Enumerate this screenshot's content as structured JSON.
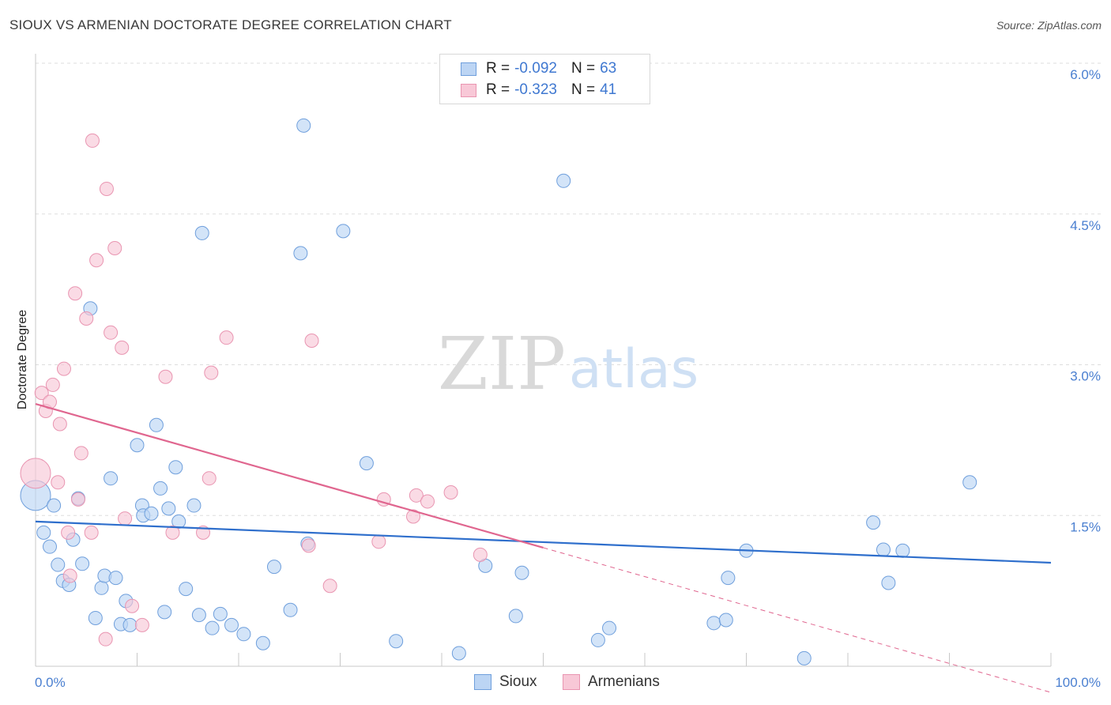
{
  "title": "SIOUX VS ARMENIAN DOCTORATE DEGREE CORRELATION CHART",
  "source": "Source: ZipAtlas.com",
  "watermark": {
    "zip": "ZIP",
    "atlas": "atlas"
  },
  "legend_top": [
    {
      "series": "Sioux",
      "r_label": "R =",
      "r_value": "-0.092",
      "n_label": "N =",
      "n_value": "63"
    },
    {
      "series": "Armenians",
      "r_label": "R =",
      "r_value": "-0.323",
      "n_label": "N =",
      "n_value": "41"
    }
  ],
  "colors": {
    "sioux_fill": "#bcd5f4",
    "sioux_stroke": "#6f9fdc",
    "sioux_line": "#2f6fcc",
    "armenian_fill": "#f8c8d7",
    "armenian_stroke": "#e995b1",
    "armenian_line": "#e0668f",
    "grid": "#dddddd",
    "axis_label": "#4a7fd0"
  },
  "chart_data": {
    "type": "scatter",
    "title": "SIOUX VS ARMENIAN DOCTORATE DEGREE CORRELATION CHART",
    "xlabel": "",
    "ylabel": "Doctorate Degree",
    "x_tick_labels": [
      "0.0%",
      "100.0%"
    ],
    "y_ticks": [
      {
        "value": 1.5,
        "label": "1.5%"
      },
      {
        "value": 3.0,
        "label": "3.0%"
      },
      {
        "value": 4.5,
        "label": "4.5%"
      },
      {
        "value": 6.0,
        "label": "6.0%"
      }
    ],
    "xlim": [
      0,
      100
    ],
    "ylim": [
      0,
      6.0
    ],
    "series": [
      {
        "name": "Sioux",
        "trend": {
          "x0": 0,
          "y0": 1.44,
          "x1": 100,
          "y1": 1.03
        },
        "points": [
          {
            "x": 0.0,
            "y": 1.7,
            "big": true
          },
          {
            "x": 0.8,
            "y": 1.33
          },
          {
            "x": 1.4,
            "y": 1.19
          },
          {
            "x": 1.8,
            "y": 1.6
          },
          {
            "x": 2.2,
            "y": 1.01
          },
          {
            "x": 2.7,
            "y": 0.85
          },
          {
            "x": 3.3,
            "y": 0.81
          },
          {
            "x": 3.7,
            "y": 1.26
          },
          {
            "x": 4.2,
            "y": 1.67
          },
          {
            "x": 4.6,
            "y": 1.02
          },
          {
            "x": 5.4,
            "y": 3.56
          },
          {
            "x": 5.9,
            "y": 0.48
          },
          {
            "x": 6.5,
            "y": 0.78
          },
          {
            "x": 6.8,
            "y": 0.9
          },
          {
            "x": 7.4,
            "y": 1.87
          },
          {
            "x": 7.9,
            "y": 0.88
          },
          {
            "x": 8.4,
            "y": 0.42
          },
          {
            "x": 8.9,
            "y": 0.65
          },
          {
            "x": 9.3,
            "y": 0.41
          },
          {
            "x": 10.0,
            "y": 2.2
          },
          {
            "x": 10.5,
            "y": 1.6
          },
          {
            "x": 10.6,
            "y": 1.5
          },
          {
            "x": 11.4,
            "y": 1.52
          },
          {
            "x": 11.9,
            "y": 2.4
          },
          {
            "x": 12.3,
            "y": 1.77
          },
          {
            "x": 12.7,
            "y": 0.54
          },
          {
            "x": 13.1,
            "y": 1.57
          },
          {
            "x": 13.8,
            "y": 1.98
          },
          {
            "x": 14.1,
            "y": 1.44
          },
          {
            "x": 14.8,
            "y": 0.77
          },
          {
            "x": 15.6,
            "y": 1.6
          },
          {
            "x": 16.1,
            "y": 0.51
          },
          {
            "x": 16.4,
            "y": 4.31
          },
          {
            "x": 17.4,
            "y": 0.38
          },
          {
            "x": 18.2,
            "y": 0.52
          },
          {
            "x": 19.3,
            "y": 0.41
          },
          {
            "x": 20.5,
            "y": 0.32
          },
          {
            "x": 22.4,
            "y": 0.23
          },
          {
            "x": 23.5,
            "y": 0.99
          },
          {
            "x": 25.1,
            "y": 0.56
          },
          {
            "x": 26.1,
            "y": 4.11
          },
          {
            "x": 26.4,
            "y": 5.38
          },
          {
            "x": 26.8,
            "y": 1.22
          },
          {
            "x": 30.3,
            "y": 4.33
          },
          {
            "x": 32.6,
            "y": 2.02
          },
          {
            "x": 35.5,
            "y": 0.25
          },
          {
            "x": 41.7,
            "y": 0.13
          },
          {
            "x": 44.3,
            "y": 1.0
          },
          {
            "x": 47.3,
            "y": 0.5
          },
          {
            "x": 47.9,
            "y": 0.93
          },
          {
            "x": 52.0,
            "y": 4.83
          },
          {
            "x": 55.4,
            "y": 0.26
          },
          {
            "x": 56.5,
            "y": 0.38
          },
          {
            "x": 66.8,
            "y": 0.43
          },
          {
            "x": 68.0,
            "y": 0.46
          },
          {
            "x": 68.2,
            "y": 0.88
          },
          {
            "x": 70.0,
            "y": 1.15
          },
          {
            "x": 75.7,
            "y": 0.08
          },
          {
            "x": 82.5,
            "y": 1.43
          },
          {
            "x": 83.5,
            "y": 1.16
          },
          {
            "x": 84.0,
            "y": 0.83
          },
          {
            "x": 85.4,
            "y": 1.15
          },
          {
            "x": 92.0,
            "y": 1.83
          }
        ]
      },
      {
        "name": "Armenians",
        "trend": {
          "x0": 0,
          "y0": 2.61,
          "x1": 50,
          "y1": 1.18,
          "dash_x1": 100,
          "dash_y1": -0.26
        },
        "points": [
          {
            "x": 0.0,
            "y": 1.92,
            "big": true
          },
          {
            "x": 0.6,
            "y": 2.72
          },
          {
            "x": 1.0,
            "y": 2.54
          },
          {
            "x": 1.4,
            "y": 2.63
          },
          {
            "x": 1.7,
            "y": 2.8
          },
          {
            "x": 2.2,
            "y": 1.83
          },
          {
            "x": 2.4,
            "y": 2.41
          },
          {
            "x": 2.8,
            "y": 2.96
          },
          {
            "x": 3.2,
            "y": 1.33
          },
          {
            "x": 3.4,
            "y": 0.9
          },
          {
            "x": 3.9,
            "y": 3.71
          },
          {
            "x": 4.2,
            "y": 1.66
          },
          {
            "x": 4.5,
            "y": 2.12
          },
          {
            "x": 5.0,
            "y": 3.46
          },
          {
            "x": 5.5,
            "y": 1.33
          },
          {
            "x": 5.6,
            "y": 5.23
          },
          {
            "x": 6.0,
            "y": 4.04
          },
          {
            "x": 6.9,
            "y": 0.27
          },
          {
            "x": 7.0,
            "y": 4.75
          },
          {
            "x": 7.4,
            "y": 3.32
          },
          {
            "x": 7.8,
            "y": 4.16
          },
          {
            "x": 8.5,
            "y": 3.17
          },
          {
            "x": 8.8,
            "y": 1.47
          },
          {
            "x": 9.5,
            "y": 0.6
          },
          {
            "x": 10.5,
            "y": 0.41
          },
          {
            "x": 12.8,
            "y": 2.88
          },
          {
            "x": 13.5,
            "y": 1.33
          },
          {
            "x": 16.5,
            "y": 1.33
          },
          {
            "x": 17.1,
            "y": 1.87
          },
          {
            "x": 17.3,
            "y": 2.92
          },
          {
            "x": 18.8,
            "y": 3.27
          },
          {
            "x": 26.9,
            "y": 1.2
          },
          {
            "x": 27.2,
            "y": 3.24
          },
          {
            "x": 29.0,
            "y": 0.8
          },
          {
            "x": 33.8,
            "y": 1.24
          },
          {
            "x": 34.3,
            "y": 1.66
          },
          {
            "x": 37.2,
            "y": 1.49
          },
          {
            "x": 37.5,
            "y": 1.7
          },
          {
            "x": 38.6,
            "y": 1.64
          },
          {
            "x": 40.9,
            "y": 1.73
          },
          {
            "x": 43.8,
            "y": 1.11
          }
        ]
      }
    ]
  },
  "legend_bottom": [
    {
      "series": "Sioux",
      "label": "Sioux"
    },
    {
      "series": "Armenians",
      "label": "Armenians"
    }
  ]
}
